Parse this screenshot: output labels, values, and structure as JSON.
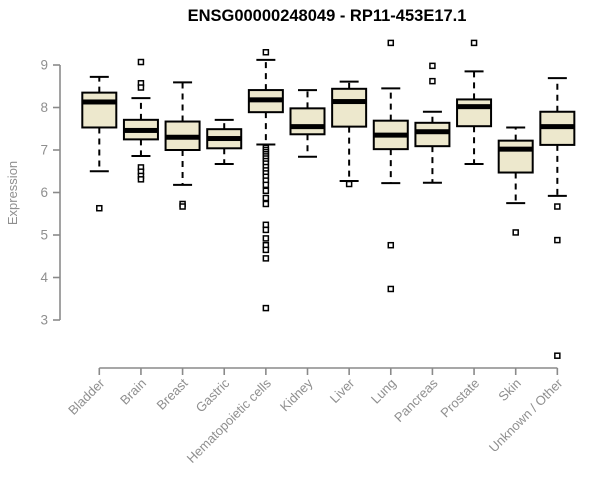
{
  "colors": {
    "background": "#ffffff",
    "box_fill": "#ede8cd",
    "box_stroke": "#000000",
    "median": "#000000",
    "whisker": "#000000",
    "outlier_fill": "#ffffff",
    "outlier_stroke": "#000000",
    "axis_line": "#8a8a8a",
    "tick_text": "#8f8f8f",
    "title_text": "#000000"
  },
  "chart_data": {
    "type": "boxplot",
    "title": "ENSG00000248049 - RP11-453E17.1",
    "ylabel": "Expression",
    "xlabel": "",
    "grid": false,
    "legend": false,
    "yticks": [
      3,
      4,
      5,
      6,
      7,
      8,
      9
    ],
    "ylim": [
      2.1,
      9.6
    ],
    "categories": [
      "Bladder",
      "Brain",
      "Breast",
      "Gastric",
      "Hematopoietic cells",
      "Kidney",
      "Liver",
      "Lung",
      "Pancreas",
      "Prostate",
      "Skin",
      "Unknown / Other"
    ],
    "boxes": [
      {
        "category": "Bladder",
        "whisker_low": 6.5,
        "q1": 7.53,
        "median": 8.13,
        "q3": 8.35,
        "whisker_high": 8.72,
        "outliers": [
          5.63
        ]
      },
      {
        "category": "Brain",
        "whisker_low": 6.86,
        "q1": 7.25,
        "median": 7.46,
        "q3": 7.71,
        "whisker_high": 8.22,
        "outliers": [
          9.07,
          8.57,
          8.47,
          6.59,
          6.49,
          6.39,
          6.31
        ]
      },
      {
        "category": "Breast",
        "whisker_low": 6.18,
        "q1": 7.0,
        "median": 7.3,
        "q3": 7.67,
        "whisker_high": 8.59,
        "outliers": [
          5.73,
          5.67
        ]
      },
      {
        "category": "Gastric",
        "whisker_low": 6.67,
        "q1": 7.04,
        "median": 7.27,
        "q3": 7.49,
        "whisker_high": 7.71,
        "outliers": []
      },
      {
        "category": "Hematopoietic cells",
        "whisker_low": 7.13,
        "q1": 7.89,
        "median": 8.18,
        "q3": 8.41,
        "whisker_high": 9.12,
        "outliers": [
          9.3,
          7.05,
          7.0,
          6.95,
          6.9,
          6.85,
          6.8,
          6.74,
          6.68,
          6.6,
          6.52,
          6.45,
          6.37,
          6.28,
          6.18,
          6.04,
          5.87,
          5.73,
          5.24,
          5.12,
          4.92,
          4.76,
          4.65,
          4.45,
          3.28
        ]
      },
      {
        "category": "Kidney",
        "whisker_low": 6.84,
        "q1": 7.37,
        "median": 7.55,
        "q3": 7.98,
        "whisker_high": 8.41,
        "outliers": []
      },
      {
        "category": "Liver",
        "whisker_low": 6.27,
        "q1": 7.55,
        "median": 8.14,
        "q3": 8.44,
        "whisker_high": 8.61,
        "outliers": [
          6.2
        ]
      },
      {
        "category": "Lung",
        "whisker_low": 6.22,
        "q1": 7.02,
        "median": 7.35,
        "q3": 7.69,
        "whisker_high": 8.45,
        "outliers": [
          9.52,
          4.76,
          3.73
        ]
      },
      {
        "category": "Pancreas",
        "whisker_low": 6.23,
        "q1": 7.09,
        "median": 7.43,
        "q3": 7.64,
        "whisker_high": 7.9,
        "outliers": [
          8.98,
          8.62
        ]
      },
      {
        "category": "Prostate",
        "whisker_low": 6.67,
        "q1": 7.56,
        "median": 8.02,
        "q3": 8.19,
        "whisker_high": 8.85,
        "outliers": [
          9.52
        ]
      },
      {
        "category": "Skin",
        "whisker_low": 5.75,
        "q1": 6.47,
        "median": 7.02,
        "q3": 7.22,
        "whisker_high": 7.53,
        "outliers": [
          5.06
        ]
      },
      {
        "category": "Unknown / Other",
        "whisker_low": 5.92,
        "q1": 7.12,
        "median": 7.55,
        "q3": 7.9,
        "whisker_high": 8.69,
        "outliers": [
          5.67,
          4.88,
          2.16
        ]
      }
    ]
  }
}
